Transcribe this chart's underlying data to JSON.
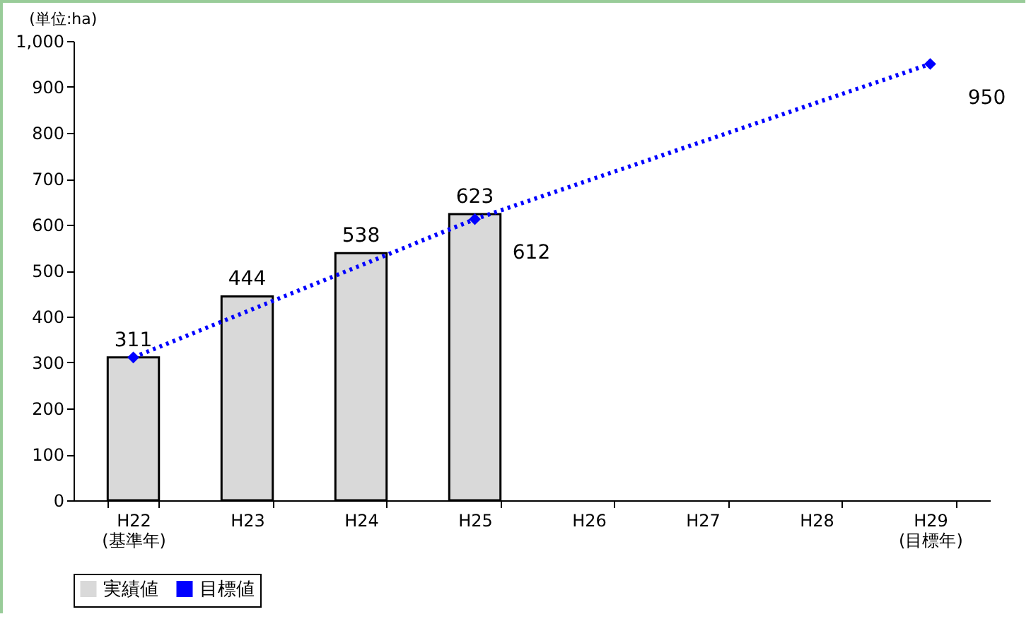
{
  "chart_data": {
    "type": "bar",
    "annotations": [
      "(単位:ha)"
    ],
    "categories": [
      "H22\n(基準年)",
      "H23",
      "H24",
      "H25",
      "H26",
      "H27",
      "H28",
      "H29\n(目標年)"
    ],
    "series": [
      {
        "name": "実績値",
        "type": "bar",
        "color": "#d9d9d9",
        "values": [
          311,
          444,
          538,
          623,
          null,
          null,
          null,
          null
        ],
        "value_labels": [
          "311",
          "444",
          "538",
          "623",
          null,
          null,
          null,
          null
        ]
      },
      {
        "name": "目標値",
        "type": "line",
        "color": "#0000ff",
        "marker": "diamond",
        "line_style": "dotted",
        "values": [
          311,
          null,
          null,
          612,
          null,
          null,
          null,
          950
        ],
        "value_labels": [
          null,
          null,
          null,
          "612",
          null,
          null,
          null,
          "950"
        ]
      }
    ],
    "ylim": [
      0,
      1000
    ],
    "yticks": [
      0,
      100,
      200,
      300,
      400,
      500,
      600,
      700,
      800,
      900,
      {
        "value": 1000,
        "label": "1,000"
      }
    ],
    "legend": "bottom",
    "grid": false
  }
}
